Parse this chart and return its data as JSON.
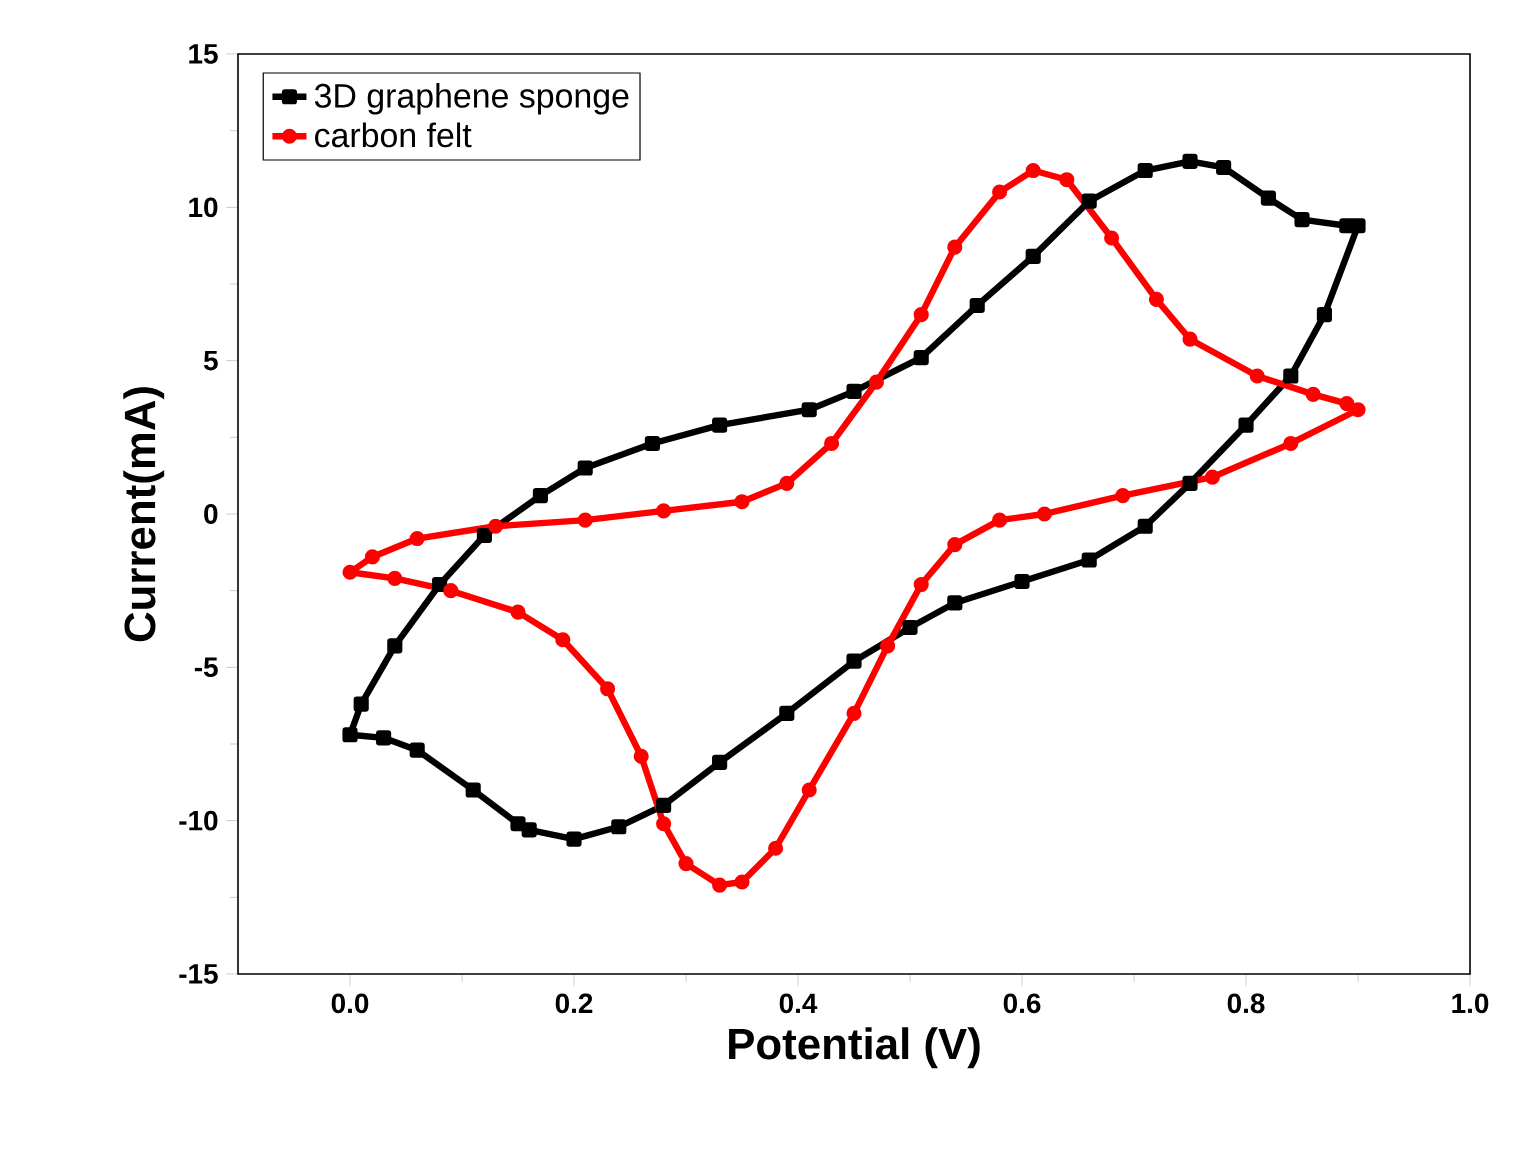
{
  "chart_data": {
    "type": "line",
    "xlabel": "Potential (V)",
    "ylabel": "Current(mA)",
    "xlim": [
      -0.1,
      1.0
    ],
    "ylim": [
      -15,
      15
    ],
    "xticks": [
      {
        "value": 0,
        "label": "0.0"
      },
      {
        "value": 0.2,
        "label": "0.2"
      },
      {
        "value": 0.4,
        "label": "0.4"
      },
      {
        "value": 0.6,
        "label": "0.6"
      },
      {
        "value": 0.8,
        "label": "0.8"
      },
      {
        "value": 1.0,
        "label": "1.0"
      }
    ],
    "yticks": [
      -15,
      -10,
      -5,
      0,
      5,
      10,
      15
    ],
    "legend": "top left",
    "grid": false,
    "series": [
      {
        "name": "3D graphene sponge",
        "color": "#000000",
        "marker": "square",
        "x": [
          0.9,
          0.87,
          0.84,
          0.8,
          0.75,
          0.71,
          0.66,
          0.6,
          0.54,
          0.5,
          0.45,
          0.39,
          0.33,
          0.28,
          0.24,
          0.2,
          0.16,
          0.15,
          0.11,
          0.06,
          0.03,
          0.0,
          0.01,
          0.04,
          0.08,
          0.12,
          0.17,
          0.21,
          0.27,
          0.33,
          0.41,
          0.45,
          0.51,
          0.56,
          0.61,
          0.66,
          0.71,
          0.75,
          0.78,
          0.82,
          0.85,
          0.89
        ],
        "values": [
          9.4,
          6.5,
          4.5,
          2.9,
          1.0,
          -0.4,
          -1.5,
          -2.2,
          -2.9,
          -3.7,
          -4.8,
          -6.5,
          -8.1,
          -9.5,
          -10.2,
          -10.6,
          -10.3,
          -10.1,
          -9.0,
          -7.7,
          -7.3,
          -7.2,
          -6.2,
          -4.3,
          -2.3,
          -0.7,
          0.6,
          1.5,
          2.3,
          2.9,
          3.4,
          4.0,
          5.1,
          6.8,
          8.4,
          10.2,
          11.2,
          11.5,
          11.3,
          10.3,
          9.6,
          9.4
        ]
      },
      {
        "name": "carbon felt",
        "color": "#ff0000",
        "marker": "circle",
        "x": [
          0.9,
          0.84,
          0.77,
          0.69,
          0.62,
          0.58,
          0.54,
          0.51,
          0.48,
          0.45,
          0.41,
          0.38,
          0.35,
          0.33,
          0.3,
          0.28,
          0.26,
          0.23,
          0.19,
          0.15,
          0.09,
          0.04,
          0.0,
          0.02,
          0.06,
          0.13,
          0.21,
          0.28,
          0.35,
          0.39,
          0.43,
          0.47,
          0.51,
          0.54,
          0.58,
          0.61,
          0.64,
          0.68,
          0.72,
          0.75,
          0.81,
          0.86,
          0.89
        ],
        "values": [
          3.4,
          2.3,
          1.2,
          0.6,
          0.0,
          -0.2,
          -1.0,
          -2.3,
          -4.3,
          -6.5,
          -9.0,
          -10.9,
          -12.0,
          -12.1,
          -11.4,
          -10.1,
          -7.9,
          -5.7,
          -4.1,
          -3.2,
          -2.5,
          -2.1,
          -1.9,
          -1.4,
          -0.8,
          -0.4,
          -0.2,
          0.1,
          0.4,
          1.0,
          2.3,
          4.3,
          6.5,
          8.7,
          10.5,
          11.2,
          10.9,
          9.0,
          7.0,
          5.7,
          4.5,
          3.9,
          3.6
        ]
      }
    ]
  }
}
